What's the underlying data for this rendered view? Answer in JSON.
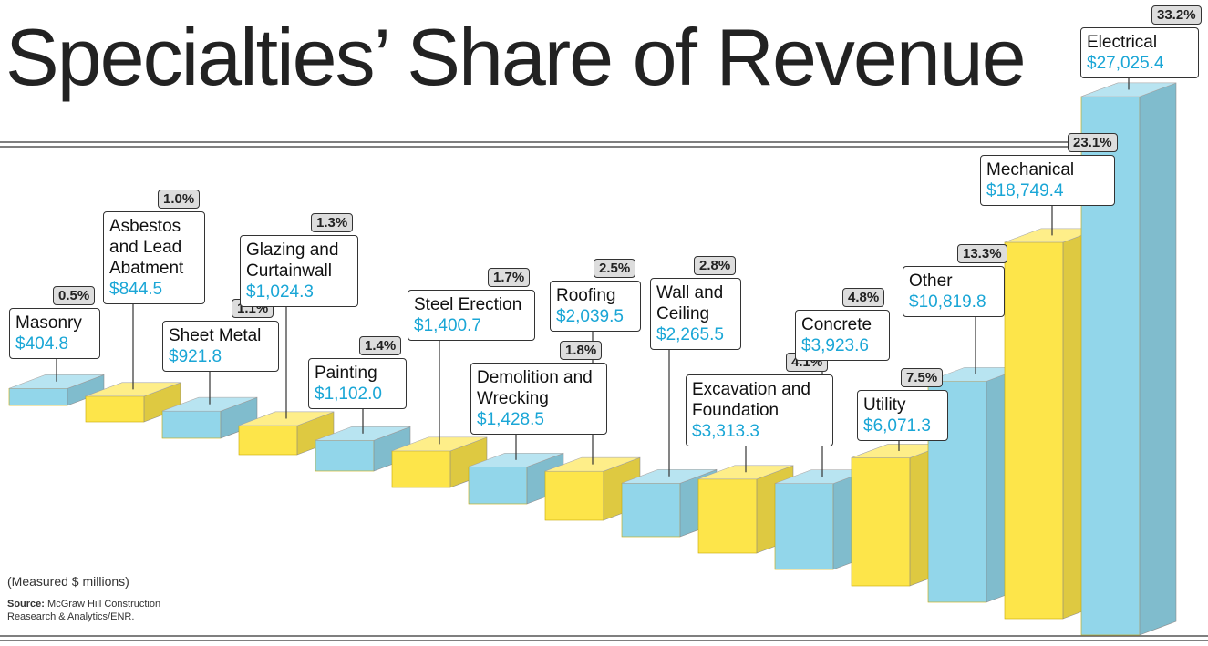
{
  "chart_data": {
    "type": "bar3d",
    "title": "Specialties’ Share of Revenue",
    "note": "(Measured $ millions)",
    "source_label": "Source:",
    "source": "McGraw Hill Construction Reasearch & Analytics/ENR.",
    "categories": [
      "Masonry",
      "Asbestos and Lead Abatment",
      "Sheet Metal",
      "Glazing and Curtainwall",
      "Painting",
      "Steel Erection",
      "Demolition and Wrecking",
      "Roofing",
      "Wall and Ceiling",
      "Excavation and Foundation",
      "Concrete",
      "Utility",
      "Other",
      "Mechanical",
      "Electrical"
    ],
    "values": [
      404.8,
      844.5,
      921.8,
      1024.3,
      1102.0,
      1400.7,
      1428.5,
      2039.5,
      2265.5,
      3313.3,
      3923.6,
      6071.3,
      10819.8,
      18749.4,
      27025.4
    ],
    "value_labels": [
      "$404.8",
      "$844.5",
      "$921.8",
      "$1,024.3",
      "$1,102.0",
      "$1,400.7",
      "$1,428.5",
      "$2,039.5",
      "$2,265.5",
      "$3,313.3",
      "$3,923.6",
      "$6,071.3",
      "$10,819.8",
      "$18,749.4",
      "$27,025.4"
    ],
    "shares": [
      0.5,
      1.0,
      1.1,
      1.3,
      1.4,
      1.7,
      1.8,
      2.5,
      2.8,
      4.1,
      4.8,
      7.5,
      13.3,
      23.1,
      33.2
    ],
    "share_labels": [
      "0.5%",
      "1.0%",
      "1.1%",
      "1.3%",
      "1.4%",
      "1.7%",
      "1.8%",
      "2.5%",
      "2.8%",
      "4.1%",
      "4.8%",
      "7.5%",
      "13.3%",
      "23.1%",
      "33.2%"
    ],
    "colors": [
      "#92d6ea",
      "#fde54a"
    ]
  }
}
